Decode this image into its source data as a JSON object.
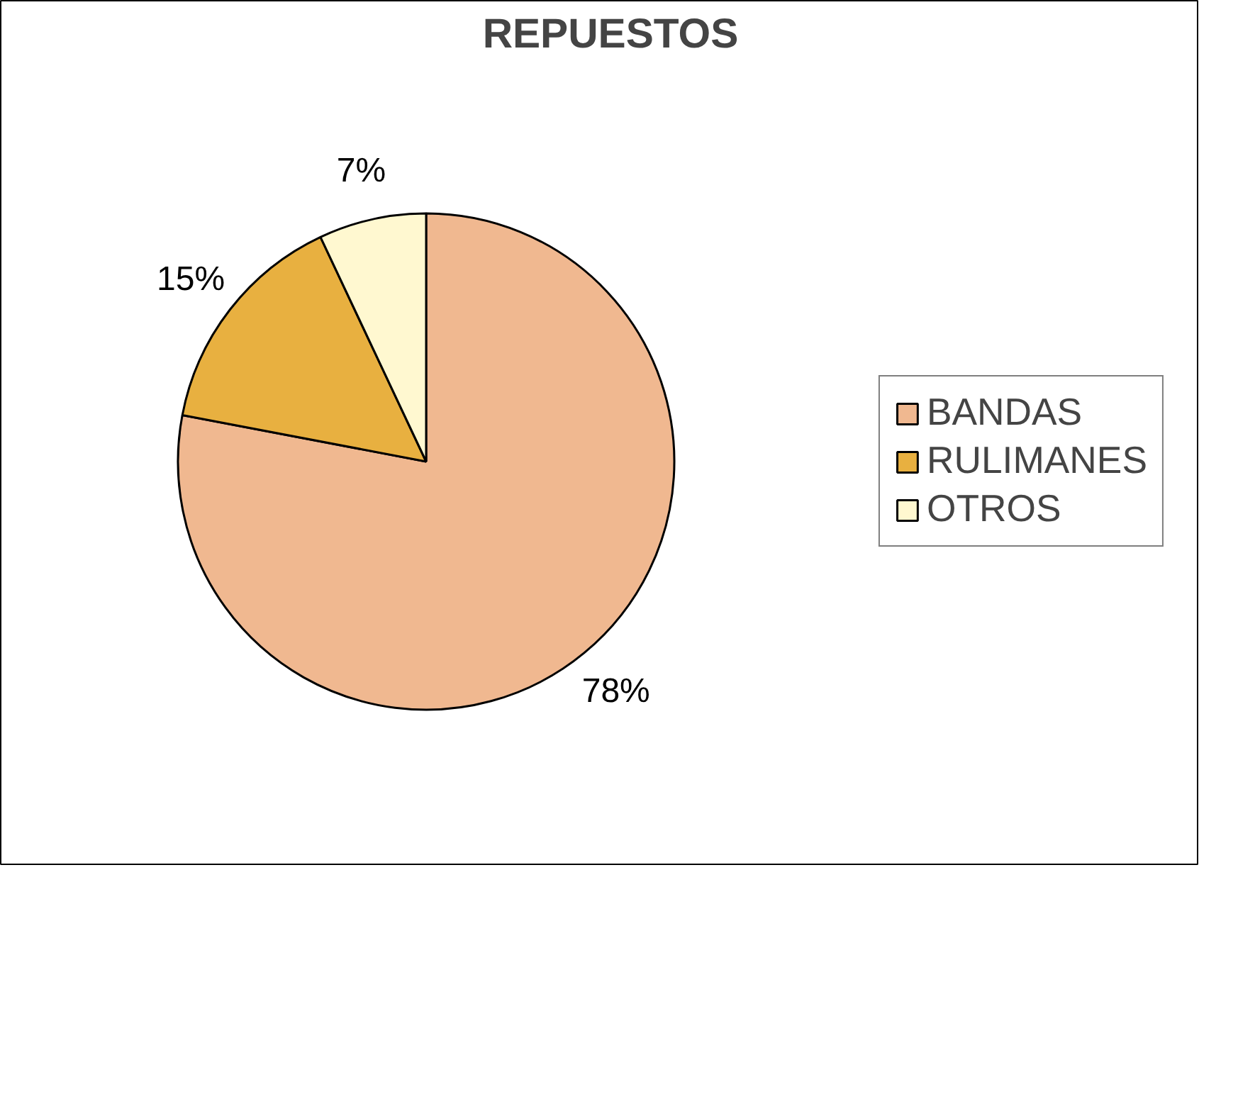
{
  "chart_data": {
    "type": "pie",
    "title": "REPUESTOS",
    "categories": [
      "BANDAS",
      "RULIMANES",
      "OTROS"
    ],
    "values": [
      78,
      15,
      7
    ],
    "colors": [
      "#f0b890",
      "#e8b040",
      "#fff8d0"
    ],
    "value_labels": [
      "78%",
      "15%",
      "7%"
    ],
    "legend": "right"
  }
}
